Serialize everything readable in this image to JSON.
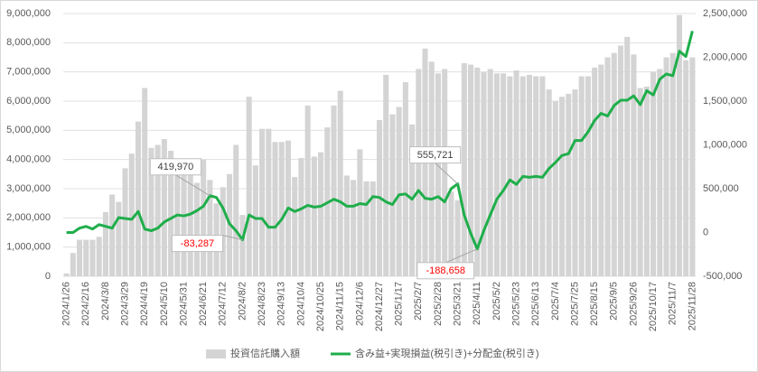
{
  "chart_data": {
    "type": "bar-line",
    "categories": [
      "2024/1/26",
      null,
      null,
      "2024/2/16",
      null,
      null,
      "2024/3/8",
      null,
      null,
      "2024/3/29",
      null,
      null,
      "2024/4/19",
      null,
      null,
      "2024/5/10",
      null,
      null,
      "2024/5/31",
      null,
      null,
      "2024/6/21",
      null,
      null,
      "2024/7/12",
      null,
      null,
      "2024/8/2",
      null,
      null,
      "2024/8/23",
      null,
      null,
      "2024/9/13",
      null,
      null,
      "2024/10/4",
      null,
      null,
      "2024/10/25",
      null,
      null,
      "2024/11/15",
      null,
      null,
      "2024/12/6",
      null,
      null,
      "2024/12/27",
      null,
      null,
      "2025/1/17",
      null,
      null,
      "2025/2/7",
      null,
      null,
      "2025/2/28",
      null,
      null,
      "2025/3/21",
      null,
      null,
      "2025/4/11",
      null,
      null,
      "2025/5/2",
      null,
      null,
      "2025/5/23",
      null,
      null,
      "2025/6/13",
      null,
      null,
      "2025/7/4",
      null,
      null,
      "2025/7/25",
      null,
      null,
      "2025/8/15",
      null,
      null,
      "2025/9/5",
      null,
      null,
      "2025/9/26",
      null,
      null,
      "2025/10/17",
      null,
      null,
      "2025/11/7",
      null,
      null,
      "2025/11/28"
    ],
    "series": [
      {
        "name": "投資信託購入額",
        "type": "bar",
        "axis": "y",
        "color": "#d4d4d4",
        "values": [
          100000,
          800000,
          1250000,
          1250000,
          1250000,
          1350000,
          2200000,
          2800000,
          2550000,
          3700000,
          4200000,
          5300000,
          6450000,
          4400000,
          4500000,
          4700000,
          4300000,
          3800000,
          3750000,
          3700000,
          3200000,
          4000000,
          3300000,
          2500000,
          3050000,
          3500000,
          4500000,
          2100000,
          6150000,
          3800000,
          5050000,
          5050000,
          4600000,
          4600000,
          4650000,
          3400000,
          4050000,
          5850000,
          4100000,
          4250000,
          5100000,
          5850000,
          6350000,
          3450000,
          3300000,
          4350000,
          3250000,
          3250000,
          5350000,
          6900000,
          5550000,
          5800000,
          6650000,
          5200000,
          7100000,
          7800000,
          7350000,
          6950000,
          7100000,
          2900000,
          2600000,
          7300000,
          7250000,
          7150000,
          7000000,
          7100000,
          6950000,
          6950000,
          6850000,
          7050000,
          6850000,
          6900000,
          6850000,
          6850000,
          6400000,
          6000000,
          6150000,
          6250000,
          6400000,
          6850000,
          6850000,
          7150000,
          7250000,
          7500000,
          7650000,
          7900000,
          8200000,
          7600000,
          6450000,
          6500000,
          7000000,
          7100000,
          7500000,
          7650000,
          8950000,
          7400000,
          7500000
        ]
      },
      {
        "name": "含み益+実現損益(税引き)+分配金(税引き)",
        "type": "line",
        "axis": "y2",
        "color": "#1fae4b",
        "values": [
          0,
          0,
          50000,
          70000,
          40000,
          90000,
          70000,
          50000,
          170000,
          160000,
          150000,
          240000,
          40000,
          20000,
          50000,
          120000,
          160000,
          200000,
          190000,
          210000,
          250000,
          300000,
          419970,
          400000,
          280000,
          100000,
          20000,
          -83287,
          200000,
          160000,
          160000,
          60000,
          60000,
          150000,
          280000,
          240000,
          270000,
          310000,
          290000,
          300000,
          340000,
          380000,
          350000,
          300000,
          300000,
          330000,
          320000,
          410000,
          400000,
          350000,
          320000,
          430000,
          440000,
          380000,
          480000,
          390000,
          380000,
          410000,
          350000,
          500000,
          555721,
          200000,
          -10000,
          -188658,
          20000,
          200000,
          380000,
          480000,
          600000,
          550000,
          640000,
          630000,
          640000,
          630000,
          730000,
          800000,
          880000,
          900000,
          1050000,
          1050000,
          1150000,
          1280000,
          1360000,
          1330000,
          1450000,
          1510000,
          1510000,
          1560000,
          1460000,
          1620000,
          1570000,
          1750000,
          1810000,
          1790000,
          2070000,
          2010000,
          2300000
        ],
        "value_labels": [
          null,
          null,
          null,
          null,
          null,
          null,
          null,
          null,
          null,
          null,
          null,
          null,
          null,
          null,
          null,
          null,
          null,
          null,
          null,
          null,
          null,
          null,
          "419,970",
          null,
          null,
          null,
          null,
          "-83,287",
          null,
          null,
          null,
          null,
          null,
          null,
          null,
          null,
          null,
          null,
          null,
          null,
          null,
          null,
          null,
          null,
          null,
          null,
          null,
          null,
          null,
          null,
          null,
          null,
          null,
          null,
          null,
          null,
          null,
          null,
          null,
          null,
          "555,721",
          null,
          null,
          "-188,658",
          null,
          null,
          null,
          null,
          null,
          null,
          null,
          null,
          null,
          null,
          null,
          null,
          null,
          null,
          null,
          null,
          null,
          null,
          null,
          null,
          null,
          null,
          null,
          null,
          null,
          null,
          null,
          null,
          null,
          null,
          null,
          null,
          null
        ]
      }
    ],
    "ylim": [
      0,
      9000000
    ],
    "yticks": [
      0,
      {
        "value": 1000000,
        "label": "1,000,000"
      },
      {
        "value": 2000000,
        "label": "2,000,000"
      },
      {
        "value": 3000000,
        "label": "3,000,000"
      },
      {
        "value": 4000000,
        "label": "4,000,000"
      },
      {
        "value": 5000000,
        "label": "5,000,000"
      },
      {
        "value": 6000000,
        "label": "6,000,000"
      },
      {
        "value": 7000000,
        "label": "7,000,000"
      },
      {
        "value": 8000000,
        "label": "8,000,000"
      },
      {
        "value": 9000000,
        "label": "9,000,000"
      }
    ],
    "y2lim": [
      -500000,
      2500000
    ],
    "y2ticks": [
      {
        "value": -500000,
        "label": "-500,000"
      },
      0,
      {
        "value": 500000,
        "label": "500,000"
      },
      {
        "value": 1000000,
        "label": "1,000,000"
      },
      {
        "value": 1500000,
        "label": "1,500,000"
      },
      {
        "value": 2000000,
        "label": "2,000,000"
      },
      {
        "value": 2500000,
        "label": "2,500,000"
      }
    ],
    "grid": true,
    "legend": "bottom"
  }
}
